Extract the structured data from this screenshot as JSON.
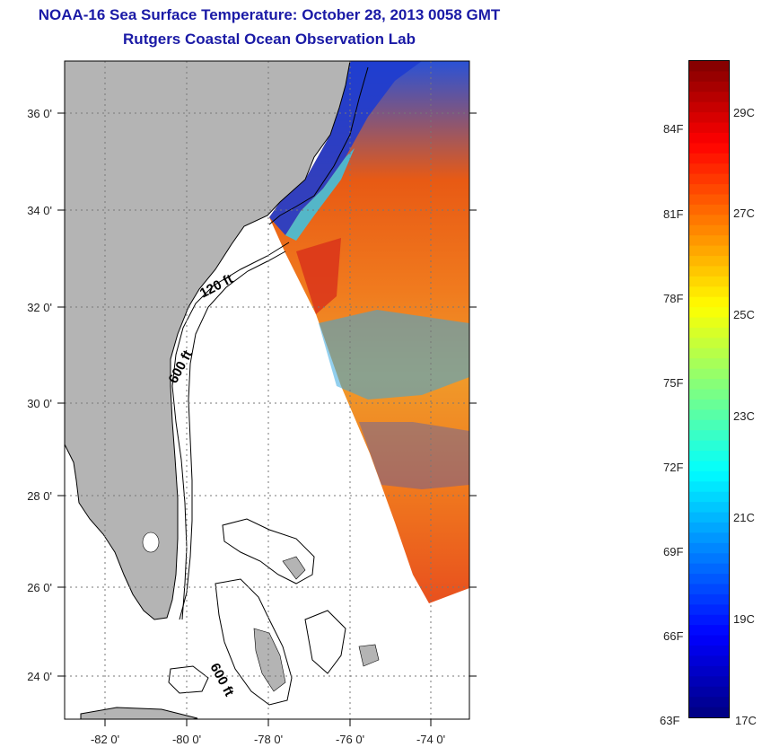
{
  "title": {
    "line1": "NOAA-16 Sea Surface Temperature:  October 28, 2013 0058 GMT",
    "line2": "Rutgers Coastal Ocean Observation Lab"
  },
  "colors": {
    "title": "#1a1aa6",
    "land": "#b4b4b4",
    "ocean_background": "#ffffff",
    "contour": "#000000",
    "grid": "#777777"
  },
  "map": {
    "lon_range": [
      -83.0,
      -73.0
    ],
    "lat_range": [
      23.0,
      37.0
    ],
    "lon_ticks": [
      {
        "value": -82,
        "label": "-82 0'"
      },
      {
        "value": -80,
        "label": "-80 0'"
      },
      {
        "value": -78,
        "label": "-78 0'"
      },
      {
        "value": -76,
        "label": "-76 0'"
      },
      {
        "value": -74,
        "label": "-74 0'"
      }
    ],
    "lat_ticks": [
      {
        "value": 36,
        "label": "36 0'"
      },
      {
        "value": 34,
        "label": "34 0'"
      },
      {
        "value": 32,
        "label": "32 0'"
      },
      {
        "value": 30,
        "label": "30 0'"
      },
      {
        "value": 28,
        "label": "28 0'"
      },
      {
        "value": 26,
        "label": "26 0'"
      },
      {
        "value": 24,
        "label": "24 0'"
      }
    ],
    "grid": "dotted",
    "contour_labels": [
      {
        "text": "120 ft"
      },
      {
        "text": "600 ft"
      },
      {
        "text": "600 ft"
      }
    ]
  },
  "colorbar": {
    "min_c": 17,
    "max_c": 30,
    "celsius_labels": [
      "29C",
      "27C",
      "25C",
      "23C",
      "21C",
      "19C",
      "17C"
    ],
    "fahrenheit_labels": [
      "84F",
      "81F",
      "78F",
      "75F",
      "72F",
      "69F",
      "66F",
      "63F"
    ],
    "colormap": "jet"
  }
}
